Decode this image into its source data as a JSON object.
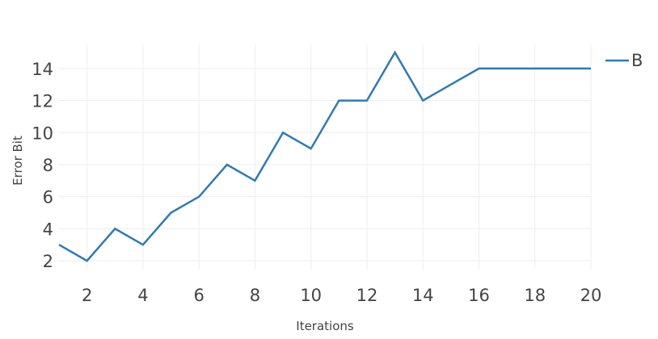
{
  "chart_data": {
    "type": "line",
    "title": "",
    "xlabel": "Iterations",
    "ylabel": "Error Bit",
    "xlim": [
      1,
      20
    ],
    "ylim": [
      1.5,
      15
    ],
    "xticks": [
      2,
      4,
      6,
      8,
      10,
      12,
      14,
      16,
      18,
      20
    ],
    "yticks": [
      2,
      4,
      6,
      8,
      10,
      12,
      14
    ],
    "grid": true,
    "legend_position": "top-right",
    "series": [
      {
        "name": "B",
        "color": "#2e7bb4",
        "x": [
          1,
          2,
          3,
          4,
          5,
          6,
          7,
          8,
          9,
          10,
          11,
          12,
          13,
          14,
          15,
          16,
          17,
          18,
          19,
          20
        ],
        "y": [
          3,
          2,
          4,
          3,
          5,
          6,
          8,
          7,
          10,
          9,
          12,
          12,
          15,
          12,
          13,
          14,
          14,
          14,
          14,
          14
        ]
      }
    ]
  }
}
